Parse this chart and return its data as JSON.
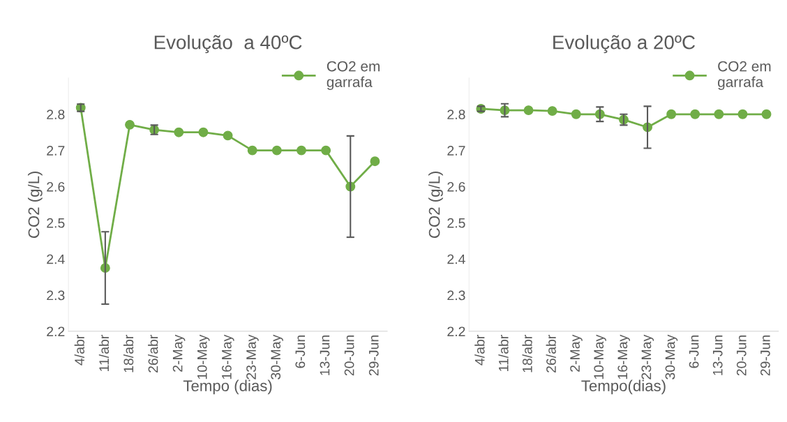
{
  "chart_data": [
    {
      "type": "line",
      "title": "Evolução  a 40ºC",
      "xlabel": "Tempo (dias)",
      "ylabel": "CO2 (g/L)",
      "categories": [
        "4/abr",
        "11/abr",
        "18/abr",
        "26/abr",
        "2-May",
        "10-May",
        "16-May",
        "23-May",
        "30-May",
        "6-Jun",
        "13-Jun",
        "20-Jun",
        "29-Jun"
      ],
      "series": [
        {
          "name": "CO2 em\ngarrafa",
          "color": "#70ad47",
          "values": [
            2.818,
            2.375,
            2.771,
            2.757,
            2.75,
            2.75,
            2.741,
            2.7,
            2.7,
            2.7,
            2.7,
            2.6,
            2.67
          ],
          "errors": [
            0.01,
            0.1,
            null,
            0.013,
            null,
            null,
            null,
            null,
            null,
            null,
            null,
            0.14,
            null
          ]
        }
      ],
      "ylim": [
        2.2,
        2.9
      ],
      "yticks": [
        2.2,
        2.3,
        2.4,
        2.5,
        2.6,
        2.7,
        2.8
      ],
      "grid": false,
      "legend": "top right",
      "marker": "circle",
      "line_style": "solid"
    },
    {
      "type": "line",
      "title": "Evolução a 20ºC",
      "xlabel": "Tempo(dias)",
      "ylabel": "CO2 (g/L)",
      "categories": [
        "4/abr",
        "11/abr",
        "18/abr",
        "26/abr",
        "2-May",
        "10-May",
        "16-May",
        "23-May",
        "30-May",
        "6-Jun",
        "13-Jun",
        "20-Jun",
        "29-Jun"
      ],
      "series": [
        {
          "name": "CO2 em\ngarrafa",
          "color": "#70ad47",
          "values": [
            2.815,
            2.811,
            2.811,
            2.809,
            2.8,
            2.8,
            2.785,
            2.764,
            2.8,
            2.8,
            2.8,
            2.8,
            2.8
          ],
          "errors": [
            0.007,
            0.018,
            null,
            null,
            null,
            0.02,
            0.015,
            0.058,
            null,
            null,
            null,
            null,
            null
          ]
        }
      ],
      "ylim": [
        2.2,
        2.9
      ],
      "yticks": [
        2.2,
        2.3,
        2.4,
        2.5,
        2.6,
        2.7,
        2.8
      ],
      "grid": false,
      "legend": "top right",
      "marker": "circle",
      "line_style": "solid"
    }
  ]
}
